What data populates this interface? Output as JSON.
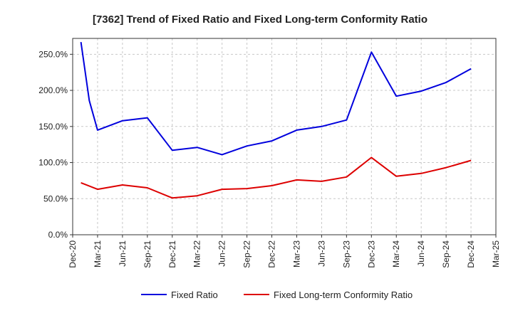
{
  "chart_data": {
    "type": "line",
    "title": "[7362]  Trend of Fixed Ratio and Fixed Long-term Conformity Ratio",
    "xlabel": "",
    "ylabel": "",
    "x_tick_labels": [
      "Dec-20",
      "Mar-21",
      "Jun-21",
      "Sep-21",
      "Dec-21",
      "Mar-22",
      "Jun-22",
      "Sep-22",
      "Dec-22",
      "Mar-23",
      "Jun-23",
      "Sep-23",
      "Dec-23",
      "Mar-24",
      "Jun-24",
      "Sep-24",
      "Dec-24",
      "Mar-25"
    ],
    "y_tick_labels": [
      "0.0%",
      "50.0%",
      "100.0%",
      "150.0%",
      "200.0%",
      "250.0%"
    ],
    "y_ticks": [
      0,
      50,
      100,
      150,
      200,
      250
    ],
    "ylim": [
      0,
      272
    ],
    "grid": true,
    "legend_position": "bottom",
    "series": [
      {
        "name": "Fixed Ratio",
        "color": "#0000dd",
        "points": [
          {
            "x": "Jan-21",
            "y": 267
          },
          {
            "x": "Feb-21",
            "y": 186
          },
          {
            "x": "Mar-21",
            "y": 145
          },
          {
            "x": "Jun-21",
            "y": 158
          },
          {
            "x": "Sep-21",
            "y": 162
          },
          {
            "x": "Dec-21",
            "y": 117
          },
          {
            "x": "Mar-22",
            "y": 121
          },
          {
            "x": "Jun-22",
            "y": 111
          },
          {
            "x": "Sep-22",
            "y": 123
          },
          {
            "x": "Dec-22",
            "y": 130
          },
          {
            "x": "Mar-23",
            "y": 145
          },
          {
            "x": "Jun-23",
            "y": 150
          },
          {
            "x": "Sep-23",
            "y": 159
          },
          {
            "x": "Dec-23",
            "y": 253
          },
          {
            "x": "Mar-24",
            "y": 192
          },
          {
            "x": "Jun-24",
            "y": 199
          },
          {
            "x": "Sep-24",
            "y": 211
          },
          {
            "x": "Dec-24",
            "y": 230
          }
        ]
      },
      {
        "name": "Fixed Long-term Conformity Ratio",
        "color": "#dd0000",
        "points": [
          {
            "x": "Jan-21",
            "y": 72
          },
          {
            "x": "Mar-21",
            "y": 63
          },
          {
            "x": "Jun-21",
            "y": 69
          },
          {
            "x": "Sep-21",
            "y": 65
          },
          {
            "x": "Dec-21",
            "y": 51
          },
          {
            "x": "Mar-22",
            "y": 54
          },
          {
            "x": "Jun-22",
            "y": 63
          },
          {
            "x": "Sep-22",
            "y": 64
          },
          {
            "x": "Dec-22",
            "y": 68
          },
          {
            "x": "Mar-23",
            "y": 76
          },
          {
            "x": "Jun-23",
            "y": 74
          },
          {
            "x": "Sep-23",
            "y": 80
          },
          {
            "x": "Dec-23",
            "y": 107
          },
          {
            "x": "Mar-24",
            "y": 81
          },
          {
            "x": "Jun-24",
            "y": 85
          },
          {
            "x": "Sep-24",
            "y": 93
          },
          {
            "x": "Dec-24",
            "y": 103
          }
        ]
      }
    ]
  }
}
